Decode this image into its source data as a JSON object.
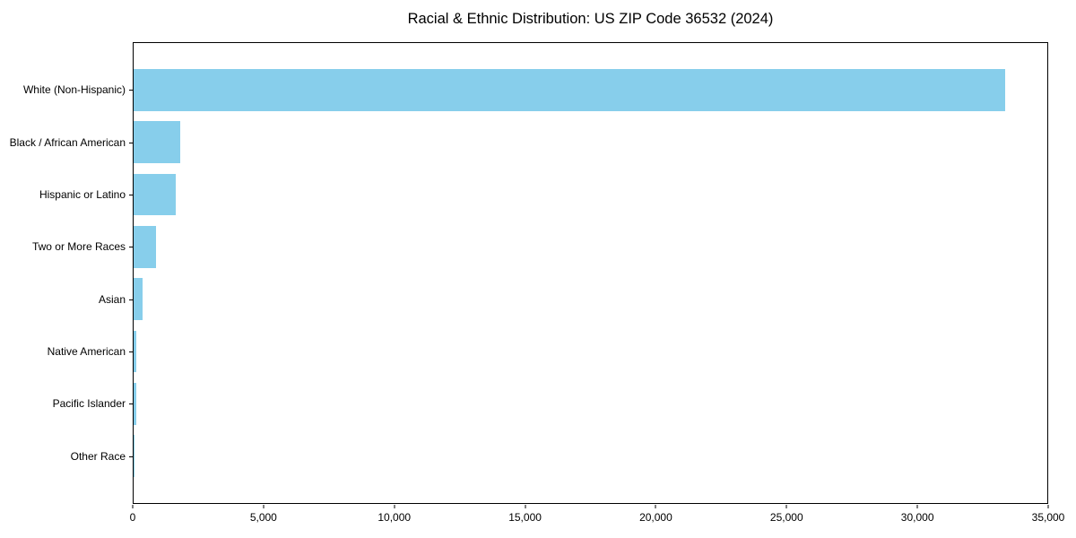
{
  "title": "Racial & Ethnic Distribution: US ZIP Code 36532 (2024)",
  "colors": {
    "bar": "#87CEEB",
    "axis": "#000000",
    "background": "#FFFFFF",
    "text": "#000000"
  },
  "chart_data": {
    "type": "bar",
    "orientation": "horizontal",
    "title": "Racial & Ethnic Distribution: US ZIP Code 36532 (2024)",
    "categories": [
      "White (Non-Hispanic)",
      "Black / African American",
      "Hispanic or Latino",
      "Two or More Races",
      "Asian",
      "Native American",
      "Pacific Islander",
      "Other Race"
    ],
    "values": [
      33400,
      1800,
      1630,
      870,
      330,
      115,
      105,
      25
    ],
    "xlabel": "",
    "ylabel": "",
    "xlim": [
      0,
      35000
    ],
    "x_ticks": [
      0,
      5000,
      10000,
      15000,
      20000,
      25000,
      30000,
      35000
    ],
    "x_tick_labels": [
      "0",
      "5,000",
      "10,000",
      "15,000",
      "20,000",
      "25,000",
      "30,000",
      "35,000"
    ],
    "grid": false,
    "legend_position": "none",
    "bar_color": "#87CEEB"
  }
}
